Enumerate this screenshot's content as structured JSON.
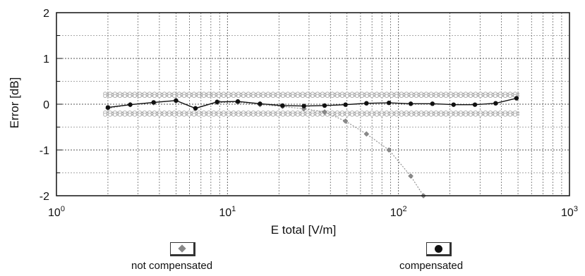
{
  "chart_data": {
    "type": "line",
    "xlabel": "E total [V/m]",
    "ylabel": "Error [dB]",
    "x_scale": "log",
    "xlim": [
      1,
      1000
    ],
    "ylim": [
      -2,
      2
    ],
    "x_ticks": [
      {
        "base": "10",
        "exp": "0",
        "value": 1
      },
      {
        "base": "10",
        "exp": "1",
        "value": 10
      },
      {
        "base": "10",
        "exp": "2",
        "value": 100
      },
      {
        "base": "10",
        "exp": "3",
        "value": 1000
      }
    ],
    "y_ticks": [
      "2",
      "1",
      "0",
      "-1",
      "-2"
    ],
    "y_tick_values": [
      2,
      1,
      0,
      -1,
      -2
    ],
    "grid": true,
    "legend_position": "bottom",
    "series": [
      {
        "name": "not compensated",
        "color": "#8a8a8a",
        "marker": "diamond",
        "x": [
          2,
          2.7,
          3.7,
          5,
          6.5,
          8.7,
          11.5,
          15.5,
          21,
          28,
          37,
          49,
          65,
          88,
          118,
          140
        ],
        "y": [
          -0.09,
          -0.01,
          0.03,
          0.08,
          -0.09,
          0.04,
          0.04,
          -0.01,
          -0.05,
          -0.1,
          -0.17,
          -0.37,
          -0.65,
          -1.0,
          -1.57,
          -2.0
        ]
      },
      {
        "name": "compensated",
        "color": "#111111",
        "marker": "circle",
        "x": [
          2,
          2.7,
          3.7,
          5,
          6.5,
          8.7,
          11.5,
          15.5,
          21,
          28,
          37,
          49,
          65,
          88,
          118,
          158,
          210,
          280,
          370,
          490
        ],
        "y": [
          -0.07,
          -0.01,
          0.04,
          0.08,
          -0.09,
          0.05,
          0.06,
          0.01,
          -0.03,
          -0.04,
          -0.03,
          -0.01,
          0.02,
          0.03,
          0.01,
          0.01,
          -0.01,
          -0.01,
          0.02,
          0.13
        ]
      }
    ],
    "bands": {
      "color": "#b8b8b8",
      "levels": [
        0.23,
        0.18,
        -0.18,
        -0.23
      ],
      "x_range": [
        2,
        490
      ]
    }
  },
  "legend": {
    "not_compensated": "not compensated",
    "compensated": "compensated"
  }
}
